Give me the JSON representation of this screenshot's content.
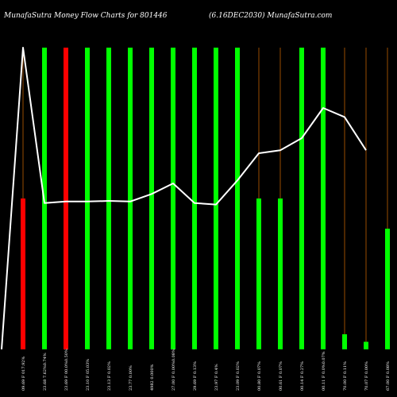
{
  "chart_data": {
    "type": "bar",
    "title_left": "MunafaSutra  Money Flow  Charts for 801446",
    "title_right": "(6.16DEC2030) MunafaSutra.com",
    "categories": [
      "09.69 F 017.92%",
      "23.68 7.62%0.74%",
      "23.69 F 00.0%0.50%",
      "23.10 F 05.03%",
      "23.13 F 0.02%",
      "23.77 0.00%",
      "4982 0.000%",
      "27.00 F 0.00%0.08%",
      "29.69 F 0.13%",
      "23.97 F 0.4%",
      "23.09 F 0.02%",
      "00.80 F 0.07%",
      "00.61 F 0.07%",
      "00.14 F 0.27%",
      "00.11 F 0.0%0.07%",
      "70.00 F 0.11%",
      "70.07 F 0.00%",
      "67.00 F 0.08%"
    ],
    "bar_values": [
      50,
      100,
      100,
      100,
      100,
      100,
      100,
      100,
      100,
      100,
      100,
      50,
      50,
      100,
      100,
      5,
      2.5,
      40
    ],
    "bar_colors": [
      "#ff0000",
      "#00ff00",
      "#ff0000",
      "#00ff00",
      "#00ff00",
      "#00ff00",
      "#00ff00",
      "#00ff00",
      "#00ff00",
      "#00ff00",
      "#00ff00",
      "#00ff00",
      "#00ff00",
      "#00ff00",
      "#00ff00",
      "#00ff00",
      "#00ff00",
      "#00ff00"
    ],
    "line_values": [
      100,
      48.5,
      49,
      49,
      49.2,
      49,
      51.5,
      55,
      48.5,
      48,
      56,
      65,
      66,
      70,
      80,
      77,
      66
    ],
    "line_start_value": 0,
    "ylim": [
      0,
      100
    ],
    "grid": false,
    "colors": {
      "background": "#000000",
      "line": "#ffffff",
      "stem": "#ff7f00"
    }
  }
}
